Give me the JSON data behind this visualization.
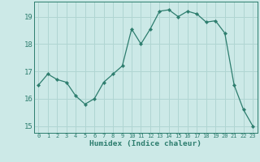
{
  "title": "",
  "xlabel": "Humidex (Indice chaleur)",
  "ylabel": "",
  "x_values": [
    0,
    1,
    2,
    3,
    4,
    5,
    6,
    7,
    8,
    9,
    10,
    11,
    12,
    13,
    14,
    15,
    16,
    17,
    18,
    19,
    20,
    21,
    22,
    23
  ],
  "y_values": [
    16.5,
    16.9,
    16.7,
    16.6,
    16.1,
    15.8,
    16.0,
    16.6,
    16.9,
    17.2,
    18.55,
    18.0,
    18.55,
    19.2,
    19.25,
    19.0,
    19.2,
    19.1,
    18.8,
    18.85,
    18.4,
    16.5,
    15.6,
    15.0
  ],
  "line_color": "#2d7d6e",
  "marker_color": "#2d7d6e",
  "bg_color": "#cce9e7",
  "grid_color": "#b0d5d2",
  "tick_label_color": "#2d7d6e",
  "axis_label_color": "#2d7d6e",
  "ylim": [
    14.75,
    19.55
  ],
  "xlim": [
    -0.5,
    23.5
  ],
  "yticks": [
    15,
    16,
    17,
    18,
    19
  ],
  "xticks": [
    0,
    1,
    2,
    3,
    4,
    5,
    6,
    7,
    8,
    9,
    10,
    11,
    12,
    13,
    14,
    15,
    16,
    17,
    18,
    19,
    20,
    21,
    22,
    23
  ]
}
